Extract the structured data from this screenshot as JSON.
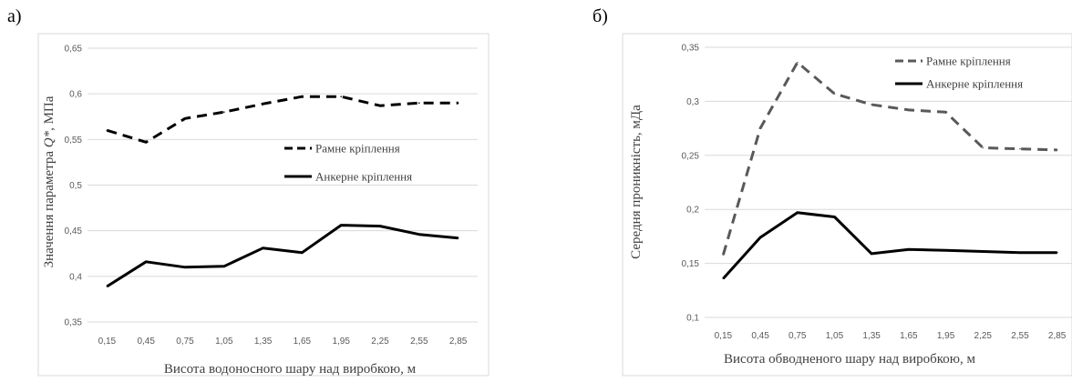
{
  "chart_data": [
    {
      "panel_label": "а)",
      "type": "line",
      "categories": [
        "0,15",
        "0,45",
        "0,75",
        "1,05",
        "1,35",
        "1,65",
        "1,95",
        "2,25",
        "2,55",
        "2,85"
      ],
      "x": [
        0.15,
        0.45,
        0.75,
        1.05,
        1.35,
        1.65,
        1.95,
        2.25,
        2.55,
        2.85
      ],
      "series": [
        {
          "name": "Рамне кріплення",
          "style": "dashed",
          "color": "#000000",
          "values": [
            0.56,
            0.547,
            0.573,
            0.58,
            0.589,
            0.597,
            0.597,
            0.587,
            0.59,
            0.59
          ]
        },
        {
          "name": "Анкерне кріплення",
          "style": "solid",
          "color": "#000000",
          "values": [
            0.389,
            0.416,
            0.41,
            0.411,
            0.431,
            0.426,
            0.456,
            0.455,
            0.446,
            0.442
          ]
        }
      ],
      "ylim": [
        0.35,
        0.65
      ],
      "yticks": [
        0.35,
        0.4,
        0.45,
        0.5,
        0.55,
        0.6,
        0.65
      ],
      "ytick_labels": [
        "0,35",
        "0,4",
        "0,45",
        "0,5",
        "0,55",
        "0,6",
        "0,65"
      ],
      "ylabel_prefix": "Значення параметра ",
      "ylabel_symbol": "Q*",
      "ylabel_suffix": ", МПа",
      "xlabel": "Висота водоносного шару над виробкою, м",
      "grid": true,
      "legend_position": "middle-right"
    },
    {
      "panel_label": "б)",
      "type": "line",
      "categories": [
        "0,15",
        "0,45",
        "0,75",
        "1,05",
        "1,35",
        "1,65",
        "1,95",
        "2,25",
        "2,55",
        "2,85"
      ],
      "x": [
        0.15,
        0.45,
        0.75,
        1.05,
        1.35,
        1.65,
        1.95,
        2.25,
        2.55,
        2.85
      ],
      "series": [
        {
          "name": "Рамне кріплення",
          "style": "dashed",
          "color": "#595959",
          "values": [
            0.158,
            0.275,
            0.336,
            0.307,
            0.297,
            0.292,
            0.29,
            0.257,
            0.256,
            0.255
          ]
        },
        {
          "name": "Анкерне кріплення",
          "style": "solid",
          "color": "#000000",
          "values": [
            0.136,
            0.174,
            0.197,
            0.193,
            0.159,
            0.163,
            0.162,
            0.161,
            0.16,
            0.16
          ]
        }
      ],
      "ylim": [
        0.1,
        0.35
      ],
      "yticks": [
        0.1,
        0.15,
        0.2,
        0.25,
        0.3,
        0.35
      ],
      "ytick_labels": [
        "0,1",
        "0,15",
        "0,2",
        "0,25",
        "0,3",
        "0,35"
      ],
      "ylabel": "Середня проникність, мДа",
      "xlabel": "Висота обводненого шару над виробкою, м",
      "grid": true,
      "legend_position": "top-right"
    }
  ]
}
